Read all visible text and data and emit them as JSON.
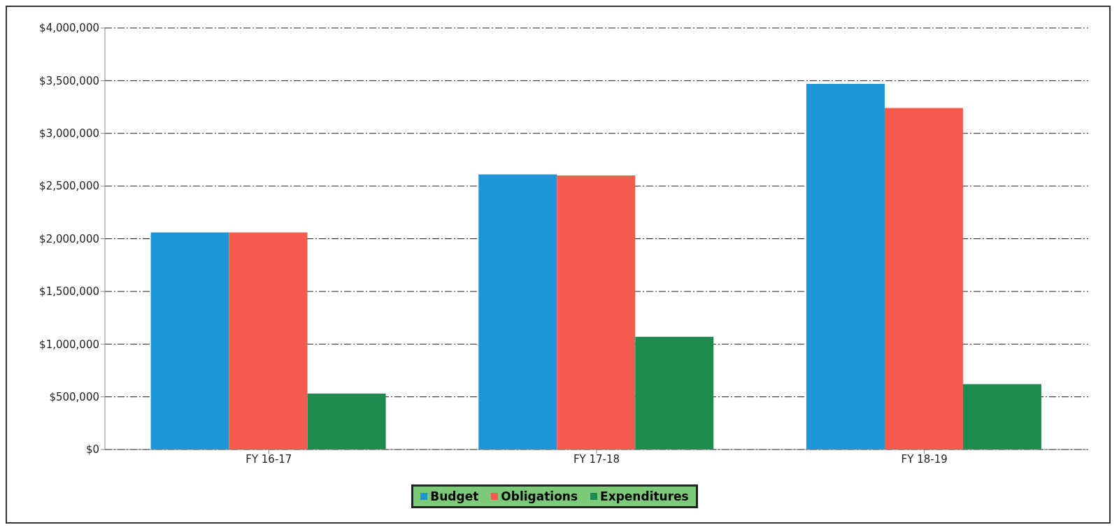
{
  "chart_data": {
    "type": "bar",
    "categories": [
      "FY 16-17",
      "FY 17-18",
      "FY 18-19"
    ],
    "series": [
      {
        "name": "Budget",
        "color": "#1e96d6",
        "values": [
          2060000,
          2610000,
          3470000
        ]
      },
      {
        "name": "Obligations",
        "color": "#f45b4f",
        "values": [
          2060000,
          2600000,
          3240000
        ]
      },
      {
        "name": "Expenditures",
        "color": "#1f8a4f",
        "values": [
          530000,
          1070000,
          620000
        ]
      }
    ],
    "ylim": [
      0,
      4000000
    ],
    "yticks": [
      {
        "value": 0,
        "label": "$0"
      },
      {
        "value": 500000,
        "label": "$500,000"
      },
      {
        "value": 1000000,
        "label": "$1,000,000"
      },
      {
        "value": 1500000,
        "label": "$1,500,000"
      },
      {
        "value": 2000000,
        "label": "$2,000,000"
      },
      {
        "value": 2500000,
        "label": "$2,500,000"
      },
      {
        "value": 3000000,
        "label": "$3,000,000"
      },
      {
        "value": 3500000,
        "label": "$3,500,000"
      },
      {
        "value": 4000000,
        "label": "$4,000,000"
      }
    ],
    "grid": "y",
    "legend": "bottom"
  }
}
